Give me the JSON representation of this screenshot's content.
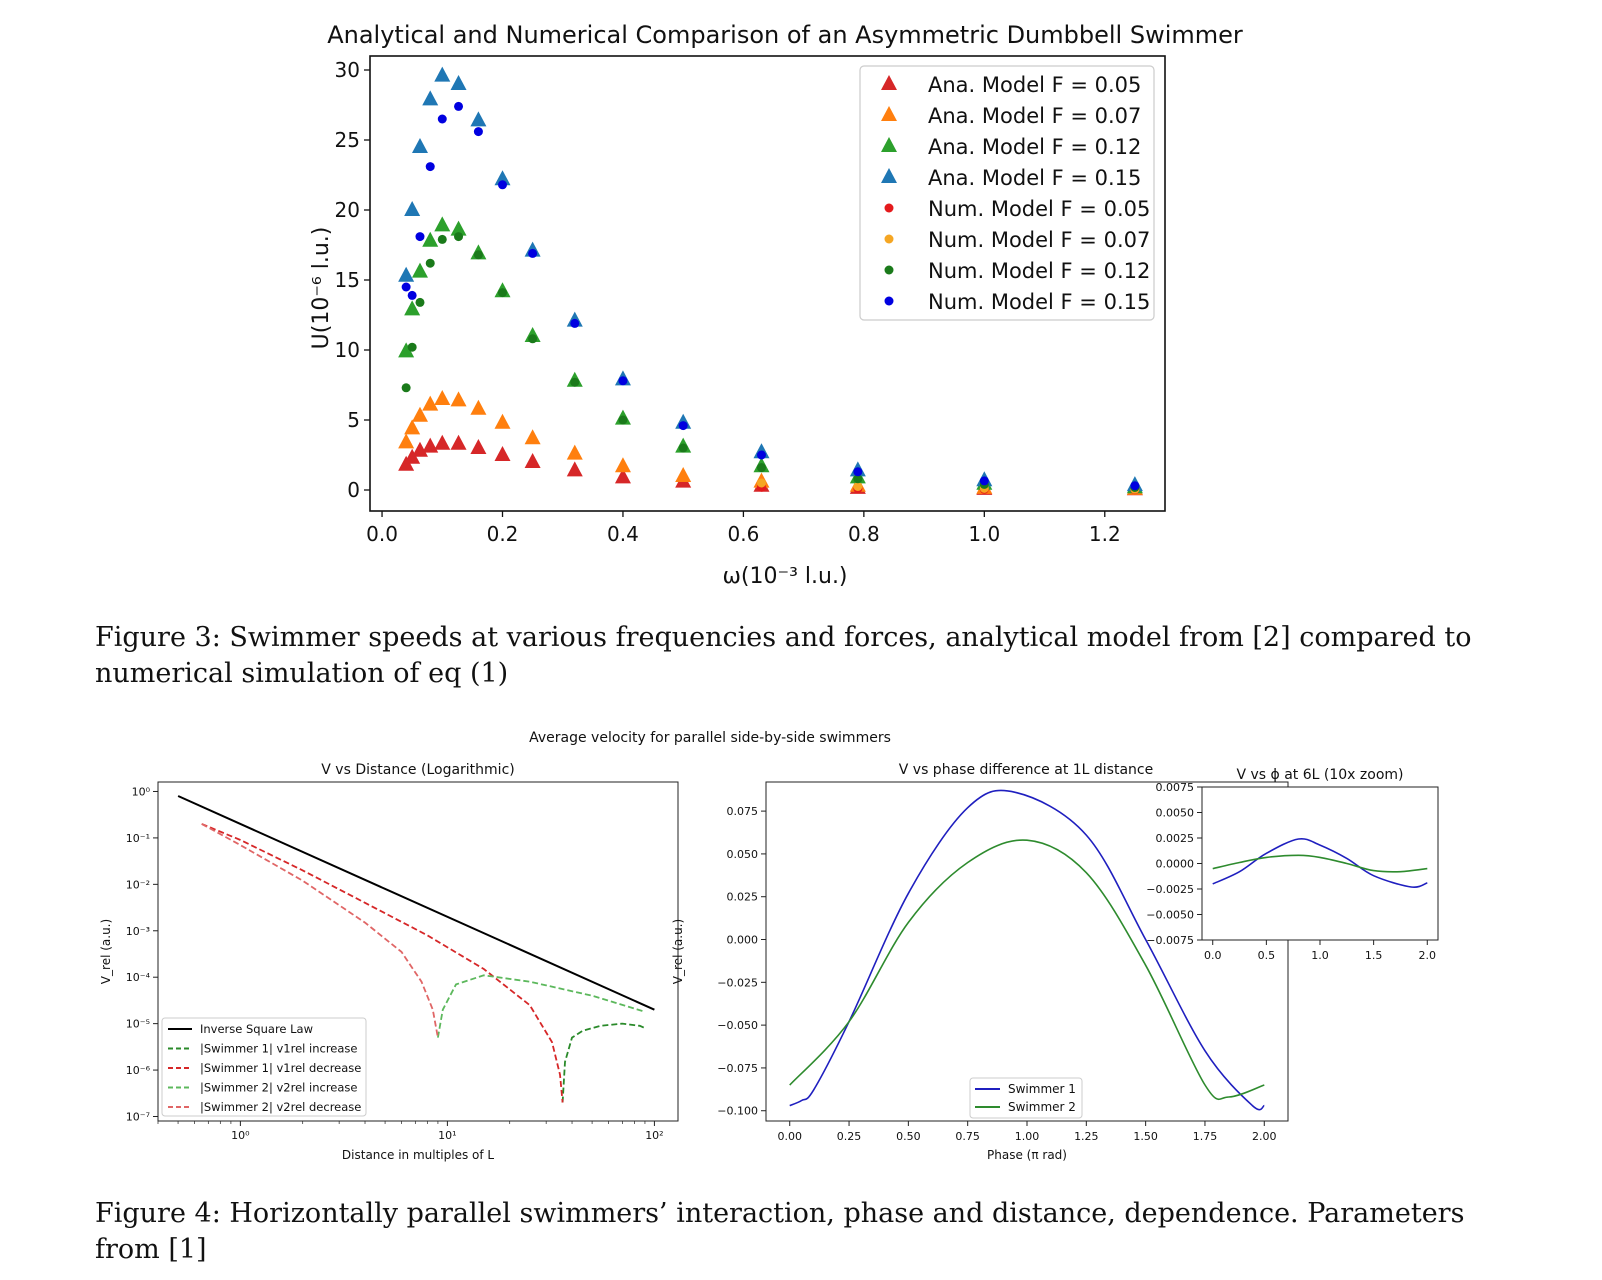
{
  "figure3": {
    "caption": "Figure 3: Swimmer speeds at various frequencies and forces, analytical model from [2] compared to numerical simulation of eq (1)",
    "chart_data": {
      "type": "scatter",
      "title": "Analytical and Numerical Comparison of an Asymmetric Dumbbell Swimmer",
      "xlabel": "ω(10⁻³ l.u.)",
      "ylabel": "U(10⁻⁶ l.u.)",
      "xlim": [
        -0.02,
        1.3
      ],
      "ylim": [
        -1.5,
        31
      ],
      "xticks": [
        0.0,
        0.2,
        0.4,
        0.6,
        0.8,
        1.0,
        1.2
      ],
      "xtick_labels": [
        "0.0",
        "0.2",
        "0.4",
        "0.6",
        "0.8",
        "1.0",
        "1.2"
      ],
      "yticks": [
        0,
        5,
        10,
        15,
        20,
        25,
        30
      ],
      "ytick_labels": [
        "0",
        "5",
        "10",
        "15",
        "20",
        "25",
        "30"
      ],
      "legend_position": "top-right",
      "x": [
        0.04,
        0.05,
        0.063,
        0.08,
        0.1,
        0.127,
        0.16,
        0.2,
        0.25,
        0.32,
        0.4,
        0.5,
        0.63,
        0.79,
        1.0,
        1.25
      ],
      "series": [
        {
          "name": "Ana. Model F = 0.05",
          "marker": "triangle",
          "color": "#d62728",
          "values": [
            1.8,
            2.3,
            2.8,
            3.1,
            3.3,
            3.3,
            3.0,
            2.5,
            2.0,
            1.4,
            0.9,
            0.6,
            0.3,
            0.15,
            0.08,
            0.05
          ]
        },
        {
          "name": "Ana. Model F = 0.07",
          "marker": "triangle",
          "color": "#ff7f0e",
          "values": [
            3.4,
            4.4,
            5.3,
            6.1,
            6.5,
            6.4,
            5.8,
            4.8,
            3.7,
            2.6,
            1.7,
            1.0,
            0.6,
            0.3,
            0.15,
            0.08
          ]
        },
        {
          "name": "Ana. Model F = 0.12",
          "marker": "triangle",
          "color": "#2ca02c",
          "values": [
            9.9,
            12.9,
            15.6,
            17.8,
            18.9,
            18.6,
            16.9,
            14.2,
            11.0,
            7.8,
            5.1,
            3.1,
            1.7,
            0.9,
            0.45,
            0.2
          ]
        },
        {
          "name": "Ana. Model F = 0.15",
          "marker": "triangle",
          "color": "#1f77b4",
          "values": [
            15.3,
            20.0,
            24.5,
            27.9,
            29.6,
            29.0,
            26.4,
            22.2,
            17.1,
            12.1,
            7.9,
            4.8,
            2.7,
            1.4,
            0.7,
            0.35
          ]
        },
        {
          "name": "Num. Model F = 0.05",
          "marker": "circle",
          "color": "#e41a1c",
          "values": [
            null,
            null,
            null,
            null,
            null,
            null,
            null,
            null,
            null,
            null,
            null,
            null,
            0.2,
            0.1,
            0.05,
            0.03
          ]
        },
        {
          "name": "Num. Model F = 0.07",
          "marker": "circle",
          "color": "#f5a623",
          "values": [
            null,
            null,
            null,
            null,
            null,
            null,
            null,
            null,
            null,
            null,
            null,
            null,
            0.5,
            0.25,
            0.12,
            0.06
          ]
        },
        {
          "name": "Num. Model F = 0.12",
          "marker": "circle",
          "color": "#1a7a1a",
          "values": [
            7.3,
            10.2,
            13.4,
            16.2,
            17.9,
            18.1,
            16.8,
            14.1,
            10.8,
            7.7,
            5.0,
            3.0,
            1.6,
            0.8,
            0.4,
            0.18
          ]
        },
        {
          "name": "Num. Model F = 0.15",
          "marker": "circle",
          "color": "#0000e0",
          "values": [
            14.5,
            13.9,
            18.1,
            23.1,
            26.5,
            27.4,
            25.6,
            21.8,
            16.9,
            11.9,
            7.8,
            4.6,
            2.5,
            1.3,
            0.65,
            0.3
          ]
        }
      ]
    }
  },
  "figure4": {
    "caption": "Figure 4: Horizontally parallel swimmers’ interaction, phase and distance, dependence. Parameters from [1]",
    "suptitle": "Average velocity for parallel side-by-side swimmers",
    "chart_data": [
      {
        "type": "line",
        "title": "V vs Distance (Logarithmic)",
        "xlabel": "Distance in multiples of L",
        "ylabel": "V_rel (a.u.)",
        "xscale": "log",
        "yscale": "log",
        "xlim": [
          0.4,
          130
        ],
        "ylim": [
          8e-08,
          1.6
        ],
        "xtick_labels": [
          "10⁰",
          "10¹",
          "10²"
        ],
        "ytick_labels": [
          "10⁰",
          "10⁻¹",
          "10⁻²",
          "10⁻³",
          "10⁻⁴",
          "10⁻⁵",
          "10⁻⁶",
          "10⁻⁷"
        ],
        "legend_position": "lower-left",
        "series": [
          {
            "name": "Inverse Square Law",
            "color": "#000000",
            "style": "solid",
            "x": [
              0.5,
              100
            ],
            "y": [
              0.8,
              2e-05
            ]
          },
          {
            "name": "|Swimmer 1| v1rel increase",
            "color": "#2a8a2a",
            "style": "dashed",
            "x": [
              36,
              37,
              40,
              45,
              55,
              70,
              85,
              90
            ],
            "y": [
              2e-07,
              1.5e-06,
              5e-06,
              7e-06,
              9e-06,
              1e-05,
              9e-06,
              8e-06
            ]
          },
          {
            "name": "|Swimmer 1| v1rel decrease",
            "color": "#d62728",
            "style": "dashed",
            "x": [
              0.65,
              1,
              2,
              4,
              8,
              15,
              25,
              32,
              35,
              36
            ],
            "y": [
              0.2,
              0.09,
              0.02,
              0.004,
              0.0008,
              0.00015,
              2.5e-05,
              4e-06,
              8e-07,
              2e-07
            ]
          },
          {
            "name": "|Swimmer 2| v2rel increase",
            "color": "#5cb85c",
            "style": "dashed",
            "x": [
              9,
              9.5,
              11,
              15,
              25,
              50,
              90
            ],
            "y": [
              5e-06,
              2e-05,
              7e-05,
              0.00011,
              8e-05,
              4e-05,
              1.8e-05
            ]
          },
          {
            "name": "|Swimmer 2| v2rel decrease",
            "color": "#e06666",
            "style": "dashed",
            "x": [
              0.65,
              1,
              2,
              4,
              6,
              7.5,
              8.5,
              9
            ],
            "y": [
              0.2,
              0.07,
              0.012,
              0.0015,
              0.00035,
              8e-05,
              2e-05,
              5e-06
            ]
          }
        ]
      },
      {
        "type": "line",
        "title": "V vs phase difference at 1L distance",
        "xlabel": "Phase (π rad)",
        "ylabel": "V_rel (a.u.)",
        "xlim": [
          -0.1,
          2.1
        ],
        "ylim": [
          -0.106,
          0.092
        ],
        "xticks": [
          0,
          0.25,
          0.5,
          0.75,
          1.0,
          1.25,
          1.5,
          1.75,
          2.0
        ],
        "xtick_labels": [
          "0.00",
          "0.25",
          "0.50",
          "0.75",
          "1.00",
          "1.25",
          "1.50",
          "1.75",
          "2.00"
        ],
        "yticks": [
          0.075,
          0.05,
          0.025,
          0,
          -0.025,
          -0.05,
          -0.075,
          -0.1
        ],
        "ytick_labels": [
          "0.075",
          "0.050",
          "0.025",
          "0.000",
          "−0.025",
          "−0.050",
          "−0.075",
          "−0.100"
        ],
        "legend_position": "lower-center",
        "series": [
          {
            "name": "Swimmer 1",
            "color": "#1f1fbf",
            "x": [
              0,
              0.05,
              0.1,
              0.25,
              0.5,
              0.75,
              0.95,
              1.25,
              1.5,
              1.75,
              1.95,
              2.0
            ],
            "y": [
              -0.097,
              -0.094,
              -0.088,
              -0.048,
              0.027,
              0.077,
              0.086,
              0.061,
              0.0,
              -0.065,
              -0.097,
              -0.097
            ]
          },
          {
            "name": "Swimmer 2",
            "color": "#2e8b2e",
            "x": [
              0,
              0.25,
              0.5,
              0.75,
              1.0,
              1.25,
              1.5,
              1.75,
              1.85,
              2.0
            ],
            "y": [
              -0.085,
              -0.048,
              0.01,
              0.045,
              0.058,
              0.039,
              -0.015,
              -0.085,
              -0.092,
              -0.085
            ]
          }
        ]
      },
      {
        "type": "line",
        "title": "V vs ϕ at 6L (10x zoom)",
        "xlim": [
          -0.1,
          2.1
        ],
        "ylim": [
          -0.0075,
          0.0075
        ],
        "xticks": [
          0,
          0.5,
          1.0,
          1.5,
          2.0
        ],
        "xtick_labels": [
          "0.0",
          "0.5",
          "1.0",
          "1.5",
          "2.0"
        ],
        "yticks": [
          0.0075,
          0.005,
          0.0025,
          0,
          -0.0025,
          -0.005,
          -0.0075
        ],
        "ytick_labels": [
          "0.0075",
          "0.0050",
          "0.0025",
          "0.0000",
          "−0.0025",
          "−0.0050",
          "−0.0075"
        ],
        "series": [
          {
            "name": "Swimmer 1",
            "color": "#1f1fbf",
            "x": [
              0,
              0.25,
              0.5,
              0.8,
              1.0,
              1.25,
              1.5,
              1.85,
              2.0
            ],
            "y": [
              -0.002,
              -0.0008,
              0.001,
              0.0024,
              0.0018,
              0.0005,
              -0.0012,
              -0.0023,
              -0.0019
            ]
          },
          {
            "name": "Swimmer 2",
            "color": "#2e8b2e",
            "x": [
              0,
              0.25,
              0.5,
              0.8,
              1.0,
              1.25,
              1.5,
              1.75,
              2.0
            ],
            "y": [
              -0.0005,
              0.0001,
              0.0006,
              0.0008,
              0.0006,
              0.0,
              -0.0007,
              -0.0008,
              -0.0005
            ]
          }
        ]
      }
    ]
  }
}
